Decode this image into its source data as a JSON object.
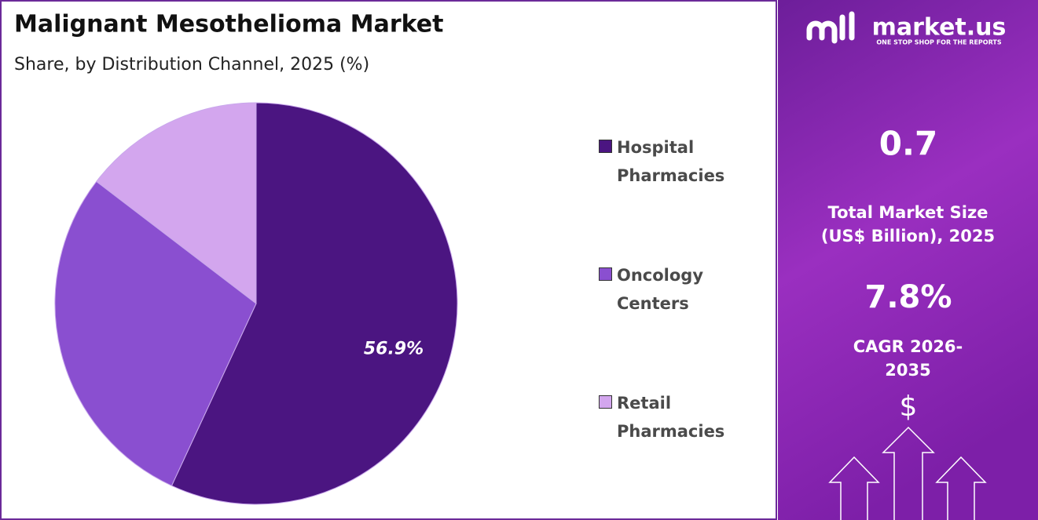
{
  "chart_data": {
    "type": "pie",
    "title": "Malignant Mesothelioma Market",
    "subtitle": "Share, by Distribution Channel, 2025 (%)",
    "categories": [
      "Hospital Pharmacies",
      "Oncology Centers",
      "Retail Pharmacies"
    ],
    "values": [
      56.9,
      28.5,
      14.6
    ],
    "value_labels": [
      "56.9%",
      null,
      null
    ],
    "colors": [
      "#4b1581",
      "#8a4fd0",
      "#d3a6ee"
    ],
    "legend": "right"
  },
  "panel": {
    "brand": "market.us",
    "tagline": "ONE STOP SHOP FOR THE REPORTS",
    "market_size": "0.7",
    "market_size_label": "Total Market Size (US$ Billion), 2025",
    "cagr": "7.8%",
    "cagr_label": "CAGR 2026-2035",
    "currency": "$"
  }
}
